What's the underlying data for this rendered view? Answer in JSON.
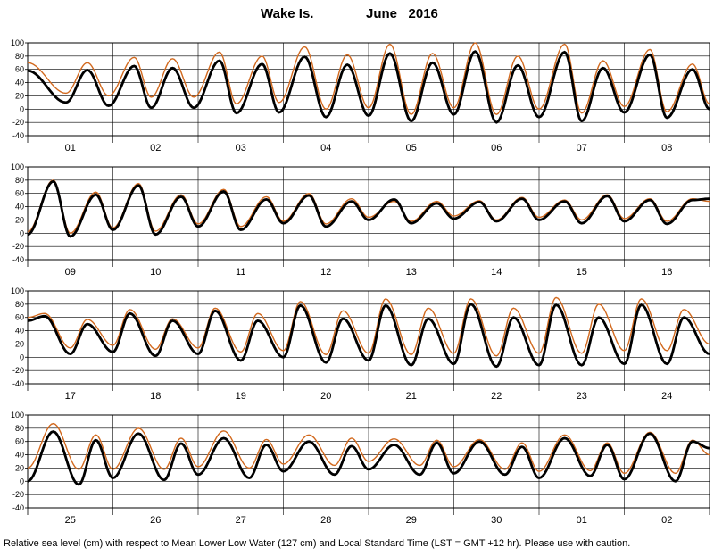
{
  "chart_data": {
    "type": "line",
    "title": {
      "station": "Wake Is.",
      "month_year": "June   2016"
    },
    "footnote": "Relative sea level (cm) with respect to Mean Lower Low Water (127 cm) and Local Standard Time (LST = GMT +12 hr). Please use with caution.",
    "ylim": [
      -40,
      100
    ],
    "yticks": [
      100,
      80,
      60,
      40,
      20,
      0,
      -20,
      -40
    ],
    "grid": true,
    "series_colors": {
      "observed": "#d2691e",
      "predicted": "#000000"
    },
    "panels": [
      {
        "days": [
          "01",
          "02",
          "03",
          "04",
          "05",
          "06",
          "07",
          "08"
        ],
        "predicted": {
          "x": [
            0,
            0.45,
            0.7,
            0.95,
            1.25,
            1.45,
            1.7,
            1.95,
            2.25,
            2.45,
            2.75,
            2.95,
            3.25,
            3.5,
            3.75,
            4,
            4.25,
            4.5,
            4.75,
            5,
            5.25,
            5.5,
            5.75,
            6,
            6.3,
            6.5,
            6.75,
            7,
            7.3,
            7.5,
            7.8,
            8
          ],
          "y": [
            58,
            10,
            59,
            5,
            65,
            2,
            62,
            2,
            73,
            -6,
            68,
            -5,
            79,
            -12,
            67,
            -10,
            84,
            -18,
            70,
            -8,
            87,
            -20,
            66,
            -12,
            86,
            -18,
            62,
            -5,
            82,
            -13,
            60,
            0
          ]
        },
        "observed": {
          "x": [
            0,
            0.45,
            0.7,
            0.95,
            1.25,
            1.45,
            1.7,
            1.95,
            2.25,
            2.45,
            2.75,
            2.95,
            3.25,
            3.5,
            3.75,
            4,
            4.25,
            4.5,
            4.75,
            5,
            5.25,
            5.5,
            5.75,
            6,
            6.3,
            6.5,
            6.75,
            7,
            7.3,
            7.5,
            7.8,
            8
          ],
          "y": [
            70,
            24,
            70,
            20,
            78,
            18,
            76,
            18,
            86,
            8,
            80,
            10,
            94,
            0,
            82,
            2,
            98,
            -8,
            84,
            2,
            100,
            -8,
            80,
            0,
            98,
            -6,
            73,
            4,
            90,
            -4,
            68,
            8
          ]
        }
      },
      {
        "days": [
          "09",
          "10",
          "11",
          "12",
          "13",
          "14",
          "15",
          "16"
        ],
        "predicted": {
          "x": [
            0,
            0.3,
            0.5,
            0.8,
            1,
            1.3,
            1.5,
            1.8,
            2,
            2.3,
            2.5,
            2.8,
            3,
            3.3,
            3.5,
            3.8,
            4,
            4.3,
            4.5,
            4.8,
            5,
            5.3,
            5.5,
            5.8,
            6,
            6.3,
            6.5,
            6.8,
            7,
            7.3,
            7.5,
            7.8,
            8
          ],
          "y": [
            -2,
            78,
            -5,
            58,
            5,
            72,
            -2,
            55,
            10,
            63,
            5,
            51,
            15,
            57,
            10,
            48,
            20,
            51,
            15,
            45,
            22,
            47,
            18,
            52,
            20,
            48,
            15,
            56,
            18,
            50,
            14,
            50,
            52
          ]
        },
        "observed": {
          "x": [
            0,
            0.3,
            0.5,
            0.8,
            1,
            1.3,
            1.5,
            1.8,
            2,
            2.3,
            2.5,
            2.8,
            3,
            3.3,
            3.5,
            3.8,
            4,
            4.3,
            4.5,
            4.8,
            5,
            5.3,
            5.5,
            5.8,
            6,
            6.3,
            6.5,
            6.8,
            7,
            7.3,
            7.5,
            7.8,
            8
          ],
          "y": [
            2,
            80,
            0,
            62,
            8,
            75,
            3,
            58,
            14,
            66,
            10,
            55,
            18,
            60,
            14,
            52,
            24,
            48,
            18,
            48,
            26,
            49,
            20,
            54,
            24,
            50,
            20,
            58,
            22,
            52,
            18,
            52,
            48
          ]
        }
      },
      {
        "days": [
          "17",
          "18",
          "19",
          "20",
          "21",
          "22",
          "23",
          "24"
        ],
        "predicted": {
          "x": [
            0,
            0.2,
            0.5,
            0.7,
            1,
            1.2,
            1.5,
            1.7,
            2,
            2.2,
            2.5,
            2.7,
            3,
            3.2,
            3.5,
            3.7,
            4,
            4.2,
            4.5,
            4.7,
            5,
            5.2,
            5.5,
            5.7,
            6,
            6.2,
            6.5,
            6.7,
            7,
            7.2,
            7.5,
            7.7,
            8
          ],
          "y": [
            55,
            62,
            5,
            50,
            8,
            66,
            2,
            55,
            5,
            70,
            -5,
            55,
            0,
            78,
            -8,
            58,
            -5,
            78,
            -12,
            58,
            -10,
            80,
            -14,
            60,
            -12,
            79,
            -12,
            60,
            -10,
            79,
            -10,
            60,
            5
          ]
        },
        "observed": {
          "x": [
            0,
            0.2,
            0.5,
            0.7,
            1,
            1.2,
            1.5,
            1.7,
            2,
            2.2,
            2.5,
            2.7,
            3,
            3.2,
            3.5,
            3.7,
            4,
            4.2,
            4.5,
            4.7,
            5,
            5.2,
            5.5,
            5.7,
            6,
            6.2,
            6.5,
            6.7,
            7,
            7.2,
            7.5,
            7.7,
            8
          ],
          "y": [
            60,
            66,
            14,
            57,
            18,
            72,
            12,
            58,
            14,
            74,
            8,
            66,
            10,
            84,
            4,
            70,
            6,
            88,
            4,
            74,
            6,
            88,
            2,
            74,
            6,
            90,
            6,
            80,
            10,
            88,
            10,
            72,
            20
          ]
        }
      },
      {
        "days": [
          "25",
          "26",
          "27",
          "28",
          "29",
          "30",
          "01",
          "02"
        ],
        "predicted": {
          "x": [
            0,
            0.3,
            0.6,
            0.8,
            1,
            1.3,
            1.6,
            1.8,
            2,
            2.3,
            2.6,
            2.8,
            3,
            3.3,
            3.6,
            3.8,
            4,
            4.3,
            4.6,
            4.8,
            5,
            5.3,
            5.6,
            5.8,
            6,
            6.3,
            6.6,
            6.8,
            7,
            7.3,
            7.6,
            7.8,
            8
          ],
          "y": [
            0,
            75,
            -5,
            62,
            5,
            72,
            2,
            57,
            10,
            65,
            5,
            55,
            15,
            60,
            10,
            53,
            18,
            55,
            10,
            58,
            12,
            60,
            10,
            52,
            5,
            65,
            8,
            55,
            3,
            72,
            0,
            60,
            50
          ]
        },
        "observed": {
          "x": [
            0,
            0.3,
            0.6,
            0.8,
            1,
            1.3,
            1.6,
            1.8,
            2,
            2.3,
            2.6,
            2.8,
            3,
            3.3,
            3.6,
            3.8,
            4,
            4.3,
            4.6,
            4.8,
            5,
            5.3,
            5.6,
            5.8,
            6,
            6.3,
            6.6,
            6.8,
            7,
            7.3,
            7.6,
            7.8,
            8
          ],
          "y": [
            20,
            87,
            18,
            70,
            18,
            80,
            18,
            65,
            22,
            76,
            20,
            63,
            26,
            70,
            24,
            65,
            30,
            64,
            24,
            62,
            22,
            63,
            18,
            58,
            15,
            70,
            16,
            58,
            12,
            74,
            12,
            62,
            40
          ]
        }
      }
    ]
  }
}
